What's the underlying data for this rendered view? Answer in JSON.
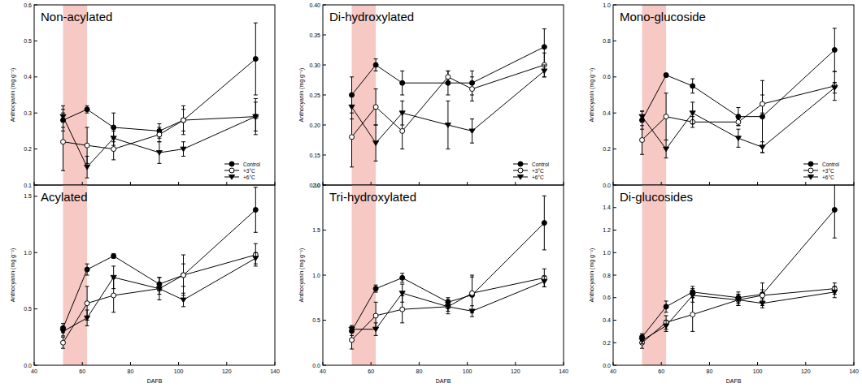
{
  "chart_data": [
    {
      "type": "line",
      "title": "Non-acylated",
      "y_label": "Anthocyanin (mg g⁻¹)",
      "tick_labels": "y",
      "legend": "lower right",
      "highlight": [
        52,
        62
      ],
      "x": [
        52,
        62,
        73,
        92,
        102,
        132
      ],
      "xlim": [
        40,
        140
      ],
      "xticks": [
        40,
        60,
        80,
        100,
        120,
        140
      ],
      "ylim": [
        0.1,
        0.6
      ],
      "yticks": [
        0.1,
        0.2,
        0.3,
        0.4,
        0.5,
        0.6
      ],
      "series": [
        {
          "name": "Control",
          "color": "#000000",
          "marker": "circle",
          "line_style": "solid",
          "values": [
            0.28,
            0.31,
            0.26,
            0.25,
            0.28,
            0.45
          ],
          "errors": [
            0.03,
            0.01,
            0.04,
            0.02,
            0.03,
            0.1
          ]
        },
        {
          "name": "+3°C",
          "color": "#000000",
          "marker": "circle-open",
          "line_style": "solid",
          "values": [
            0.22,
            0.21,
            0.2,
            0.24,
            0.28,
            0.29
          ],
          "errors": [
            0.08,
            0.05,
            0.03,
            0.02,
            0.04,
            0.05
          ]
        },
        {
          "name": "+6°C",
          "color": "#000000",
          "marker": "triangle-down",
          "line_style": "solid",
          "values": [
            0.29,
            0.15,
            0.23,
            0.19,
            0.2,
            0.29
          ],
          "errors": [
            0.03,
            0.03,
            0.02,
            0.03,
            0.02,
            0.04
          ]
        }
      ]
    },
    {
      "type": "line",
      "title": "Di-hydroxylated",
      "y_label": "Anthocyanin (mg g⁻¹)",
      "tick_labels": "y",
      "legend": "lower right",
      "highlight": [
        52,
        62
      ],
      "x": [
        52,
        62,
        73,
        92,
        102,
        132
      ],
      "xlim": [
        40,
        140
      ],
      "xticks": [
        40,
        60,
        80,
        100,
        120,
        140
      ],
      "ylim": [
        0.1,
        0.4
      ],
      "yticks": [
        {
          "value": 0.1,
          "label": "0.10"
        },
        0.15,
        {
          "value": 0.2,
          "label": "0.20"
        },
        0.25,
        {
          "value": 0.3,
          "label": "0.30"
        },
        0.35,
        {
          "value": 0.4,
          "label": "0.40"
        }
      ],
      "series": [
        {
          "name": "Control",
          "color": "#000000",
          "marker": "circle",
          "line_style": "solid",
          "values": [
            0.25,
            0.3,
            0.27,
            0.27,
            0.27,
            0.33
          ],
          "errors": [
            0.03,
            0.01,
            0.02,
            0.02,
            0.02,
            0.03
          ]
        },
        {
          "name": "+3°C",
          "color": "#000000",
          "marker": "circle-open",
          "line_style": "solid",
          "values": [
            0.18,
            0.23,
            0.19,
            0.28,
            0.26,
            0.3
          ],
          "errors": [
            0.05,
            0.03,
            0.03,
            0.01,
            0.02,
            0.02
          ]
        },
        {
          "name": "+6°C",
          "color": "#000000",
          "marker": "triangle-down",
          "line_style": "solid",
          "values": [
            0.23,
            0.17,
            0.22,
            0.2,
            0.19,
            0.29
          ],
          "errors": [
            0.02,
            0.03,
            0.02,
            0.04,
            0.02,
            0.01
          ]
        }
      ]
    },
    {
      "type": "line",
      "title": "Mono-glucoside",
      "y_label": "Anthocyanin (mg g⁻¹)",
      "tick_labels": "y",
      "legend": "lower right",
      "highlight": [
        52,
        62
      ],
      "x": [
        52,
        62,
        73,
        92,
        102,
        132
      ],
      "xlim": [
        40,
        140
      ],
      "xticks": [
        40,
        60,
        80,
        100,
        120,
        140
      ],
      "ylim": [
        0,
        1
      ],
      "yticks": [
        {
          "value": 0,
          "label": "0.0"
        },
        0.2,
        0.4,
        0.6,
        0.8,
        {
          "value": 1,
          "label": "1.0"
        }
      ],
      "series": [
        {
          "name": "Control",
          "color": "#000000",
          "marker": "circle",
          "line_style": "solid",
          "values": [
            0.36,
            0.61,
            0.55,
            0.38,
            0.38,
            0.75
          ],
          "errors": [
            0.05,
            0.01,
            0.04,
            0.05,
            0.2,
            0.12
          ]
        },
        {
          "name": "+3°C",
          "color": "#000000",
          "marker": "circle-open",
          "line_style": "solid",
          "values": [
            0.25,
            0.38,
            0.35,
            0.35,
            0.45,
            0.55
          ],
          "errors": [
            0.08,
            0.13,
            0.03,
            0.02,
            0.05,
            0.08
          ]
        },
        {
          "name": "+6°C",
          "color": "#000000",
          "marker": "triangle-down",
          "line_style": "solid",
          "values": [
            0.38,
            0.2,
            0.4,
            0.26,
            0.21,
            0.54
          ],
          "errors": [
            0.03,
            0.05,
            0.06,
            0.05,
            0.03,
            0.03
          ]
        }
      ]
    },
    {
      "type": "line",
      "title": "Acylated",
      "y_label": "Anthocyanin (mg g⁻¹)",
      "x_label": "DAFB",
      "highlight": [
        52,
        62
      ],
      "x": [
        52,
        62,
        73,
        92,
        102,
        132
      ],
      "xlim": [
        40,
        140
      ],
      "xticks": [
        40,
        60,
        80,
        100,
        120,
        140
      ],
      "ylim": [
        0,
        1.6
      ],
      "yticks": [
        {
          "value": 0,
          "label": "0.0"
        },
        0.5,
        {
          "value": 1,
          "label": "1.0"
        },
        1.5
      ],
      "series": [
        {
          "color": "#000000",
          "marker": "circle",
          "line_style": "solid",
          "values": [
            0.33,
            0.85,
            0.97,
            0.72,
            0.8,
            1.38
          ],
          "errors": [
            0.04,
            0.05,
            0.02,
            0.06,
            0.18,
            0.2
          ]
        },
        {
          "color": "#000000",
          "marker": "circle-open",
          "line_style": "solid",
          "values": [
            0.2,
            0.55,
            0.62,
            0.68,
            0.8,
            0.98
          ],
          "errors": [
            0.05,
            0.15,
            0.15,
            0.1,
            0.1,
            0.1
          ]
        },
        {
          "color": "#000000",
          "marker": "triangle-down",
          "line_style": "solid",
          "values": [
            0.3,
            0.42,
            0.78,
            0.68,
            0.58,
            0.95
          ],
          "errors": [
            0.04,
            0.07,
            0.1,
            0.05,
            0.06,
            0.05
          ]
        }
      ]
    },
    {
      "type": "line",
      "title": "Tri-hydroxylated",
      "y_label": "Anthocyanin (mg g⁻¹)",
      "x_label": "DAFB",
      "highlight": [
        52,
        62
      ],
      "x": [
        52,
        62,
        73,
        92,
        102,
        132
      ],
      "xlim": [
        40,
        140
      ],
      "xticks": [
        40,
        60,
        80,
        100,
        120,
        140
      ],
      "ylim": [
        0,
        2
      ],
      "yticks": [
        {
          "value": 0,
          "label": "0.0"
        },
        0.5,
        {
          "value": 1,
          "label": "1.0"
        },
        1.5,
        {
          "value": 2,
          "label": "2.0"
        }
      ],
      "series": [
        {
          "color": "#000000",
          "marker": "circle",
          "line_style": "solid",
          "values": [
            0.38,
            0.85,
            0.97,
            0.7,
            0.78,
            1.58
          ],
          "errors": [
            0.05,
            0.04,
            0.05,
            0.05,
            0.2,
            0.3
          ]
        },
        {
          "color": "#000000",
          "marker": "circle-open",
          "line_style": "solid",
          "values": [
            0.28,
            0.55,
            0.62,
            0.65,
            0.8,
            0.97
          ],
          "errors": [
            0.1,
            0.15,
            0.15,
            0.08,
            0.2,
            0.1
          ]
        },
        {
          "color": "#000000",
          "marker": "triangle-down",
          "line_style": "solid",
          "values": [
            0.4,
            0.4,
            0.8,
            0.65,
            0.6,
            0.93
          ],
          "errors": [
            0.04,
            0.07,
            0.1,
            0.05,
            0.06,
            0.06
          ]
        }
      ]
    },
    {
      "type": "line",
      "title": "Di-glucosides",
      "y_label": "Anthocyanin (mg g⁻¹)",
      "x_label": "DAFB",
      "highlight": [
        52,
        62
      ],
      "x": [
        52,
        62,
        73,
        92,
        102,
        132
      ],
      "xlim": [
        40,
        140
      ],
      "xticks": [
        40,
        60,
        80,
        100,
        120,
        140
      ],
      "ylim": [
        0,
        1.6
      ],
      "yticks": [
        {
          "value": 0,
          "label": "0.0"
        },
        0.2,
        0.4,
        0.6,
        0.8,
        {
          "value": 1,
          "label": "1.0"
        },
        1.2,
        1.4
      ],
      "series": [
        {
          "color": "#000000",
          "marker": "circle",
          "line_style": "solid",
          "values": [
            0.25,
            0.52,
            0.65,
            0.6,
            0.63,
            1.38
          ],
          "errors": [
            0.03,
            0.05,
            0.05,
            0.05,
            0.1,
            0.25
          ]
        },
        {
          "color": "#000000",
          "marker": "circle-open",
          "line_style": "solid",
          "values": [
            0.2,
            0.38,
            0.45,
            0.58,
            0.62,
            0.68
          ],
          "errors": [
            0.05,
            0.06,
            0.15,
            0.05,
            0.05,
            0.05
          ]
        },
        {
          "color": "#000000",
          "marker": "triangle-down",
          "line_style": "solid",
          "values": [
            0.22,
            0.35,
            0.62,
            0.58,
            0.55,
            0.65
          ],
          "errors": [
            0.03,
            0.05,
            0.06,
            0.05,
            0.04,
            0.05
          ]
        }
      ]
    }
  ]
}
